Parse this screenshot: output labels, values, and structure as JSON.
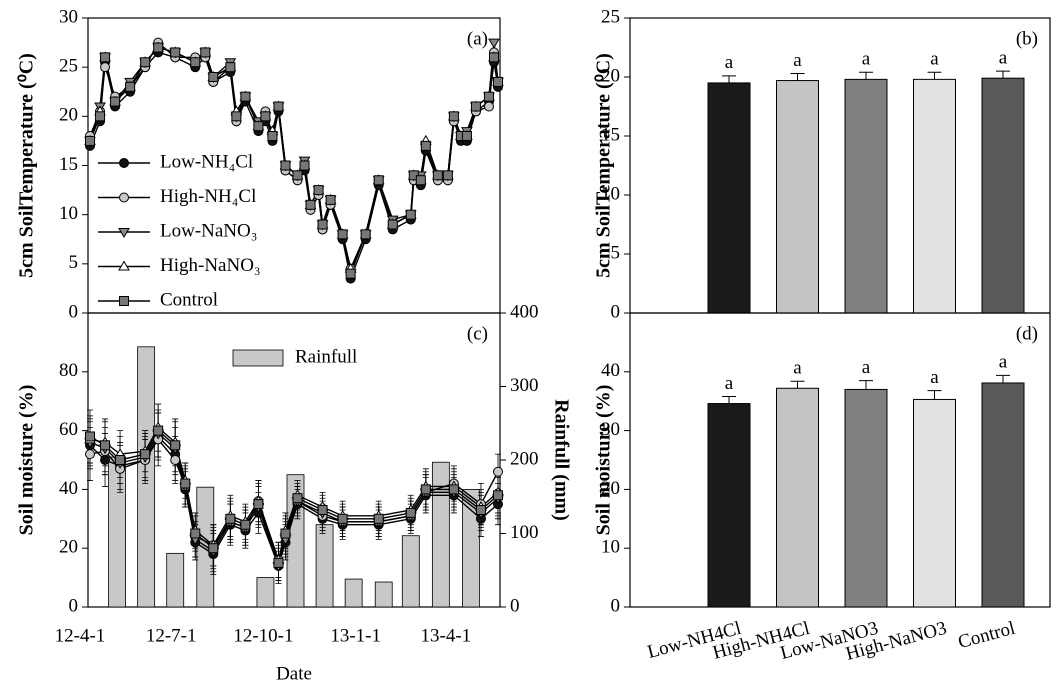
{
  "chart_data": [
    {
      "type": "line",
      "title": "(a)",
      "ylabel": "5cm SoilTemperature (⁰C)",
      "xlim": [
        "2012-04-09",
        "2013-05-25"
      ],
      "ylim": [
        0,
        30
      ],
      "yticks": [
        0,
        5,
        10,
        15,
        20,
        25,
        30
      ],
      "legend": "lower left",
      "x": [
        "2012-04-11",
        "2012-04-21",
        "2012-04-26",
        "2012-05-06",
        "2012-05-21",
        "2012-06-05",
        "2012-06-18",
        "2012-07-05",
        "2012-07-25",
        "2012-08-04",
        "2012-08-12",
        "2012-08-29",
        "2012-09-04",
        "2012-09-13",
        "2012-09-26",
        "2012-10-03",
        "2012-10-10",
        "2012-10-16",
        "2012-10-23",
        "2012-11-04",
        "2012-11-11",
        "2012-11-17",
        "2012-11-25",
        "2012-11-29",
        "2012-12-07",
        "2012-12-19",
        "2012-12-27",
        "2013-01-11",
        "2013-01-24",
        "2013-02-07",
        "2013-02-25",
        "2013-02-28",
        "2013-03-07",
        "2013-03-12",
        "2013-03-24",
        "2013-04-03",
        "2013-04-09",
        "2013-04-16",
        "2013-04-22",
        "2013-05-01",
        "2013-05-14",
        "2013-05-19",
        "2013-05-23"
      ],
      "series": [
        {
          "name": "Low-NH₄Cl",
          "marker": "circle",
          "color": "#111111",
          "values": [
            17,
            19.5,
            25.5,
            21,
            22.5,
            25,
            26.5,
            26,
            25,
            26,
            23.5,
            24.5,
            19.5,
            21.5,
            18.5,
            19.5,
            17.5,
            20.5,
            14.5,
            13.5,
            14.5,
            10.5,
            12,
            8.5,
            11,
            7.5,
            3.5,
            7.5,
            13,
            8.5,
            9.5,
            13.5,
            13,
            16.5,
            13.5,
            13.5,
            19.5,
            17.5,
            17.5,
            20.5,
            21.5,
            25.5,
            23
          ]
        },
        {
          "name": "High-NH₄Cl",
          "marker": "circle",
          "color": "#c8c8c8",
          "values": [
            18,
            20.5,
            25,
            22,
            23,
            25,
            27.5,
            26,
            26,
            26,
            23.5,
            25,
            19.5,
            22,
            19,
            20.5,
            18,
            21,
            14.5,
            13.5,
            15,
            10.5,
            12,
            8.5,
            11,
            8,
            4.5,
            8,
            13.5,
            9,
            10,
            13.5,
            13.5,
            17,
            13.5,
            13.5,
            19.5,
            18,
            18,
            20.5,
            21,
            26.5,
            23.5
          ]
        },
        {
          "name": "Low-NaNO₃",
          "marker": "triangle-down",
          "color": "#888888",
          "values": [
            17.5,
            21,
            26,
            21.5,
            23.5,
            25.5,
            27,
            26.5,
            25.5,
            26.5,
            24,
            25.5,
            20,
            22,
            19.5,
            20,
            18,
            21,
            15,
            14,
            15.5,
            11,
            12.5,
            9,
            11.5,
            8,
            4,
            8,
            13.5,
            9.5,
            10,
            14,
            14,
            17,
            14,
            14,
            20,
            18,
            18.5,
            21,
            22,
            27.5,
            23.5
          ]
        },
        {
          "name": "High-NaNO₃",
          "marker": "triangle-up",
          "color": "#ffffff",
          "values": [
            17.5,
            20.5,
            26,
            21.5,
            23,
            25.5,
            27,
            26.5,
            25.5,
            26.5,
            24,
            25,
            20.5,
            22,
            19,
            20,
            18.5,
            21,
            15,
            14,
            15,
            11,
            12.5,
            9,
            11.5,
            8,
            4.5,
            8,
            13.5,
            9,
            10,
            14,
            13.5,
            17.5,
            14,
            14,
            20,
            18,
            18,
            21,
            22,
            26,
            23.5
          ]
        },
        {
          "name": "Control",
          "marker": "square",
          "color": "#777777",
          "values": [
            17.5,
            20,
            26,
            21.5,
            23,
            25.5,
            27,
            26.5,
            25.5,
            26.5,
            24,
            25,
            20,
            22,
            19,
            20,
            18,
            21,
            15,
            14,
            15,
            11,
            12.5,
            9,
            11.5,
            8,
            4,
            8,
            13.5,
            9,
            10,
            14,
            13.5,
            17,
            14,
            14,
            20,
            18,
            18,
            21,
            22,
            26,
            23.5
          ]
        }
      ]
    },
    {
      "type": "bar",
      "title": "(b)",
      "ylabel": "5cm SoilTemperature (⁰C)",
      "ylim": [
        0,
        25
      ],
      "yticks": [
        0,
        5,
        10,
        15,
        20,
        25
      ],
      "values": [
        19.5,
        19.7,
        19.8,
        19.8,
        19.9
      ],
      "errors": [
        0.6,
        0.6,
        0.6,
        0.6,
        0.6
      ],
      "annotations": [
        "a",
        "a",
        "a",
        "a",
        "a"
      ],
      "colors": [
        "#1a1a1a",
        "#c4c4c4",
        "#808080",
        "#e2e2e2",
        "#5a5a5a"
      ]
    },
    {
      "type": "line",
      "title": "(c)",
      "ylabel": "Soil moisture (%)",
      "xlabel": "Date",
      "y2label": "Rainfull (mm)",
      "xlim": [
        "2012-04-09",
        "2013-05-25"
      ],
      "ylim": [
        0,
        100
      ],
      "yticks": [
        0,
        20,
        40,
        60,
        80
      ],
      "y2lim": [
        0,
        400
      ],
      "y2ticks": [
        0,
        100,
        200,
        300,
        400
      ],
      "xticks": [
        {
          "value": "2012-04-01",
          "label": "12-4-1"
        },
        {
          "value": "2012-07-01",
          "label": "12-7-1"
        },
        {
          "value": "2012-10-01",
          "label": "12-10-1"
        },
        {
          "value": "2013-01-01",
          "label": "13-1-1"
        },
        {
          "value": "2013-04-01",
          "label": "13-4-1"
        }
      ],
      "x": [
        "2012-04-11",
        "2012-04-26",
        "2012-05-11",
        "2012-06-05",
        "2012-06-18",
        "2012-07-05",
        "2012-07-15",
        "2012-07-25",
        "2012-08-12",
        "2012-08-29",
        "2012-09-13",
        "2012-09-26",
        "2012-10-16",
        "2012-10-23",
        "2012-11-04",
        "2012-11-29",
        "2012-12-19",
        "2013-01-24",
        "2013-02-25",
        "2013-03-12",
        "2013-04-09",
        "2013-05-06",
        "2013-05-23"
      ],
      "bars": {
        "name": "Rainfull",
        "axis": "y2",
        "color": "#c8c8c8",
        "x": [
          "2012-05-08",
          "2012-06-06",
          "2012-07-05",
          "2012-08-04",
          "2012-10-03",
          "2012-11-02",
          "2012-12-01",
          "2012-12-30",
          "2013-01-29",
          "2013-02-25",
          "2013-03-27",
          "2013-04-26"
        ],
        "values": [
          204,
          354,
          73,
          163,
          40,
          180,
          112,
          38,
          34,
          97,
          197,
          160
        ]
      },
      "series": [
        {
          "name": "Low-NH₄Cl",
          "marker": "circle",
          "color": "#111111",
          "values": [
            55,
            50,
            48,
            50,
            58,
            52,
            40,
            22,
            18,
            28,
            26,
            32,
            14,
            22,
            35,
            30,
            28,
            28,
            30,
            38,
            38,
            30,
            35
          ],
          "errors": [
            8,
            9,
            8,
            7,
            8,
            9,
            6,
            6,
            7,
            7,
            6,
            7,
            6,
            6,
            5,
            5,
            5,
            5,
            5,
            6,
            6,
            6,
            7
          ]
        },
        {
          "name": "High-NH₄Cl",
          "marker": "circle",
          "color": "#c8c8c8",
          "values": [
            52,
            53,
            47,
            50,
            57,
            50,
            41,
            24,
            21,
            29,
            27,
            36,
            16,
            24,
            36,
            31,
            29,
            29,
            31,
            39,
            42,
            35,
            46
          ],
          "errors": [
            9,
            8,
            8,
            8,
            9,
            8,
            6,
            7,
            7,
            6,
            6,
            7,
            6,
            6,
            5,
            5,
            5,
            5,
            5,
            6,
            6,
            7,
            6
          ]
        },
        {
          "name": "Low-NaNO₃",
          "marker": "triangle-down",
          "color": "#888888",
          "values": [
            56,
            54,
            49,
            51,
            59,
            54,
            41,
            23,
            19,
            29,
            27,
            34,
            14,
            23,
            36,
            32,
            29,
            29,
            31,
            39,
            39,
            32,
            37
          ],
          "errors": [
            8,
            9,
            7,
            8,
            8,
            9,
            7,
            6,
            7,
            7,
            6,
            7,
            5,
            6,
            5,
            5,
            5,
            5,
            5,
            6,
            6,
            6,
            7
          ]
        },
        {
          "name": "High-NaNO₃",
          "marker": "triangle-up",
          "color": "#ffffff",
          "values": [
            57,
            56,
            52,
            53,
            61,
            56,
            43,
            26,
            21,
            31,
            29,
            36,
            16,
            26,
            38,
            34,
            31,
            31,
            33,
            41,
            41,
            34,
            39
          ],
          "errors": [
            8,
            8,
            8,
            7,
            8,
            8,
            6,
            6,
            7,
            7,
            6,
            7,
            6,
            6,
            5,
            5,
            5,
            5,
            5,
            6,
            6,
            6,
            7
          ]
        },
        {
          "name": "Control",
          "marker": "square",
          "color": "#777777",
          "values": [
            58,
            55,
            50,
            52,
            60,
            55,
            42,
            25,
            20,
            30,
            28,
            35,
            15,
            25,
            37,
            33,
            30,
            30,
            32,
            40,
            40,
            33,
            38
          ],
          "errors": [
            9,
            9,
            8,
            8,
            9,
            9,
            7,
            6,
            7,
            7,
            6,
            7,
            6,
            6,
            5,
            5,
            5,
            5,
            5,
            6,
            6,
            6,
            7
          ]
        }
      ]
    },
    {
      "type": "bar",
      "title": "(d)",
      "ylabel": "Soil moisture (%)",
      "ylim": [
        0,
        50
      ],
      "yticks": [
        0,
        10,
        20,
        30,
        40
      ],
      "categories": [
        "Low-NH4Cl",
        "High-NH4Cl",
        "Low-NaNO3",
        "High-NaNO3",
        "Control"
      ],
      "values": [
        34.6,
        37.2,
        37.0,
        35.3,
        38.1
      ],
      "errors": [
        1.2,
        1.2,
        1.5,
        1.5,
        1.3
      ],
      "annotations": [
        "a",
        "a",
        "a",
        "a",
        "a"
      ],
      "colors": [
        "#1a1a1a",
        "#c4c4c4",
        "#808080",
        "#e2e2e2",
        "#5a5a5a"
      ]
    }
  ]
}
